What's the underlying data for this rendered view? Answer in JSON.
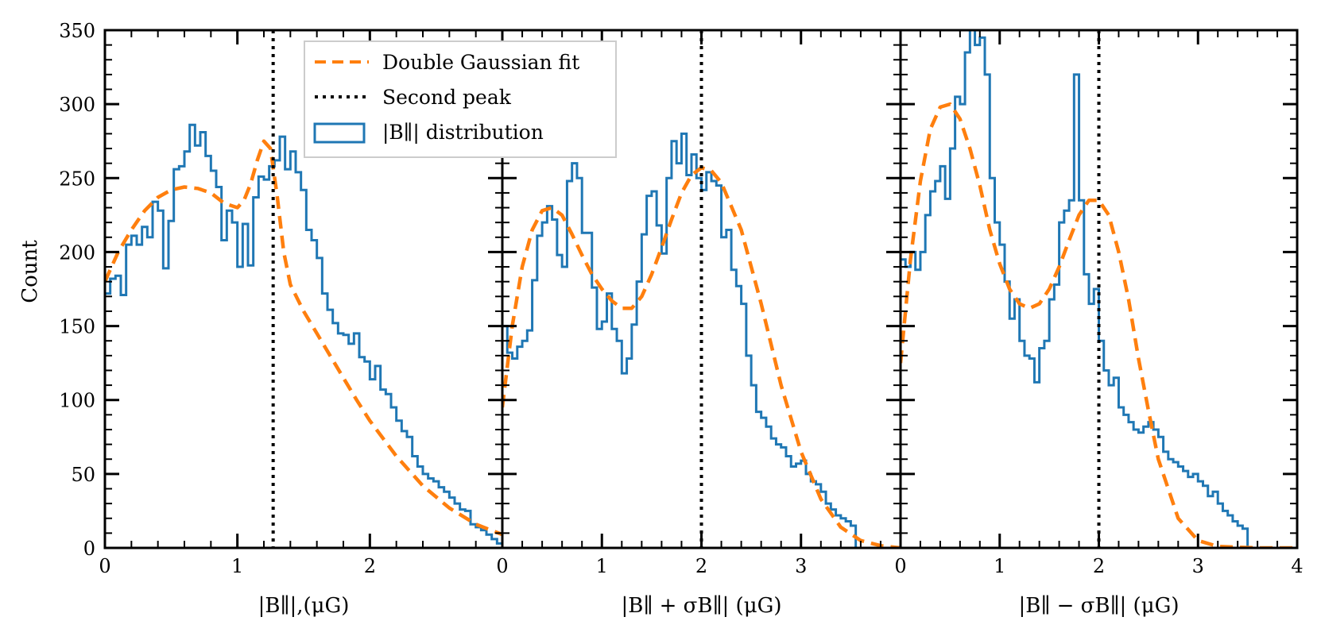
{
  "chart_data": {
    "type": "histogram",
    "ylabel": "Count",
    "ylim": [
      0,
      350
    ],
    "yticks": [
      "0",
      "50",
      "100",
      "150",
      "200",
      "250",
      "300",
      "350"
    ],
    "legend": {
      "location": "upper-left of first panel",
      "entries": [
        "Double Gaussian fit",
        "Second peak",
        "|B∥| distribution"
      ]
    },
    "colors": {
      "histogram": "#1f77b4",
      "fit": "#ff7f0e",
      "peak_line": "#000000"
    },
    "panels": [
      {
        "xlabel": "|B∥|,(μG)",
        "xlim": [
          0,
          3
        ],
        "xticks": [
          "0",
          "1",
          "2"
        ],
        "xtick_values": [
          0,
          1,
          2
        ],
        "bin_start": 0,
        "bin_width": 0.04,
        "counts": [
          172,
          182,
          184,
          171,
          205,
          211,
          205,
          217,
          210,
          234,
          228,
          189,
          221,
          256,
          258,
          268,
          286,
          272,
          281,
          265,
          255,
          244,
          208,
          228,
          220,
          190,
          219,
          191,
          237,
          251,
          249,
          258,
          262,
          278,
          256,
          268,
          254,
          242,
          215,
          208,
          196,
          172,
          161,
          152,
          145,
          144,
          138,
          145,
          129,
          126,
          114,
          123,
          107,
          104,
          95,
          86,
          79,
          75,
          62,
          55,
          50,
          47,
          45,
          41,
          38,
          34,
          30,
          26,
          25,
          16,
          14,
          12,
          9,
          6,
          3
        ],
        "fit_x": [
          0,
          0.1,
          0.2,
          0.3,
          0.4,
          0.5,
          0.6,
          0.7,
          0.8,
          0.9,
          1.0,
          1.05,
          1.1,
          1.15,
          1.2,
          1.25,
          1.3,
          1.35,
          1.4,
          1.5,
          1.6,
          1.7,
          1.8,
          1.9,
          2.0,
          2.2,
          2.4,
          2.6,
          2.8,
          3.0
        ],
        "fit_y": [
          180,
          200,
          215,
          228,
          237,
          242,
          244,
          243,
          240,
          233,
          230,
          235,
          246,
          262,
          275,
          270,
          238,
          200,
          178,
          160,
          145,
          130,
          115,
          100,
          86,
          62,
          42,
          27,
          16,
          9
        ],
        "second_peak": 1.27
      },
      {
        "xlabel": "|B∥ + σB∥| (μG)",
        "xlim": [
          0,
          4
        ],
        "xticks": [
          "0",
          "1",
          "2",
          "3"
        ],
        "xtick_values": [
          0,
          1,
          2,
          3
        ],
        "bin_start": 0,
        "bin_width": 0.05,
        "counts": [
          150,
          132,
          128,
          136,
          140,
          147,
          181,
          211,
          220,
          231,
          222,
          198,
          190,
          248,
          260,
          250,
          213,
          213,
          176,
          148,
          153,
          172,
          148,
          140,
          118,
          128,
          151,
          180,
          212,
          238,
          241,
          218,
          199,
          250,
          275,
          260,
          280,
          252,
          266,
          250,
          242,
          254,
          248,
          245,
          210,
          215,
          188,
          177,
          165,
          130,
          110,
          92,
          88,
          82,
          74,
          70,
          68,
          62,
          55,
          57,
          59,
          50,
          45,
          43,
          38,
          30,
          26,
          22,
          20,
          18,
          15
        ],
        "fit_x": [
          0,
          0.1,
          0.2,
          0.3,
          0.4,
          0.5,
          0.6,
          0.7,
          0.8,
          0.9,
          1.0,
          1.1,
          1.2,
          1.3,
          1.4,
          1.5,
          1.6,
          1.7,
          1.8,
          1.9,
          2.0,
          2.1,
          2.2,
          2.4,
          2.6,
          2.8,
          3.0,
          3.2,
          3.4,
          3.6,
          3.8,
          4.0
        ],
        "fit_y": [
          95,
          150,
          190,
          215,
          228,
          230,
          225,
          212,
          198,
          185,
          175,
          167,
          162,
          162,
          170,
          185,
          203,
          222,
          240,
          252,
          257,
          255,
          247,
          215,
          165,
          110,
          65,
          33,
          14,
          5,
          1.5,
          0
        ],
        "second_peak": 2.0
      },
      {
        "xlabel": "|B∥ − σB∥| (μG)",
        "xlim": [
          0,
          4
        ],
        "xticks": [
          "0",
          "1",
          "2",
          "3",
          "4"
        ],
        "xtick_values": [
          0,
          1,
          2,
          3,
          4
        ],
        "bin_start": 0,
        "bin_width": 0.05,
        "counts": [
          195,
          190,
          200,
          188,
          200,
          225,
          241,
          248,
          258,
          236,
          270,
          305,
          300,
          335,
          352,
          340,
          345,
          320,
          250,
          220,
          205,
          180,
          155,
          168,
          140,
          130,
          128,
          112,
          135,
          140,
          168,
          178,
          220,
          228,
          235,
          320,
          235,
          185,
          165,
          175,
          140,
          120,
          110,
          115,
          95,
          90,
          85,
          80,
          78,
          82,
          85,
          80,
          75,
          65,
          60,
          58,
          55,
          52,
          48,
          50,
          45,
          42,
          35,
          38,
          30,
          25,
          22,
          18,
          15,
          13
        ],
        "fit_x": [
          0,
          0.1,
          0.2,
          0.3,
          0.4,
          0.5,
          0.6,
          0.7,
          0.8,
          0.9,
          1.0,
          1.1,
          1.2,
          1.3,
          1.4,
          1.5,
          1.6,
          1.7,
          1.8,
          1.9,
          2.0,
          2.1,
          2.2,
          2.3,
          2.4,
          2.5,
          2.6,
          2.8,
          3.0,
          3.2,
          3.4,
          3.6,
          4.0
        ],
        "fit_y": [
          125,
          195,
          248,
          283,
          298,
          300,
          290,
          270,
          245,
          215,
          192,
          175,
          165,
          162,
          165,
          175,
          190,
          208,
          225,
          235,
          235,
          225,
          200,
          168,
          128,
          93,
          60,
          20,
          5,
          1,
          0.5,
          0,
          0
        ],
        "second_peak": 2.0
      }
    ]
  }
}
